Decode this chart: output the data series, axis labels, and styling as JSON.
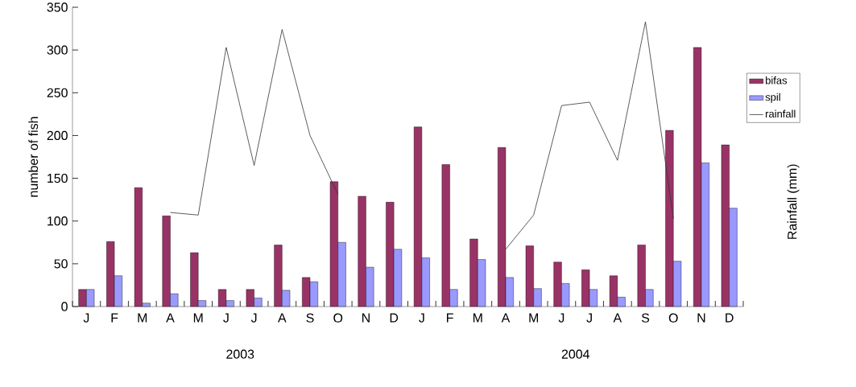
{
  "chart_data": {
    "type": "bar",
    "ylabel": "number of fish",
    "y2label": "Rainfall (mm)",
    "categories": [
      "J",
      "F",
      "M",
      "A",
      "M",
      "J",
      "J",
      "A",
      "S",
      "O",
      "N",
      "D",
      "J",
      "F",
      "M",
      "A",
      "M",
      "J",
      "J",
      "A",
      "S",
      "O",
      "N",
      "D"
    ],
    "series": [
      {
        "name": "bifas",
        "color": "#993366",
        "values": [
          20,
          76,
          139,
          106,
          63,
          20,
          20,
          72,
          34,
          146,
          129,
          122,
          210,
          166,
          79,
          186,
          71,
          52,
          43,
          36,
          72,
          206,
          303,
          189
        ]
      },
      {
        "name": "spil",
        "color": "#9999ff",
        "values": [
          20,
          36,
          4,
          15,
          7,
          7,
          10,
          19,
          29,
          75,
          46,
          67,
          57,
          20,
          55,
          34,
          21,
          27,
          20,
          11,
          20,
          53,
          168,
          115
        ]
      },
      {
        "name": "rainfall",
        "type": "line",
        "color": "#333333",
        "values": [
          null,
          null,
          null,
          110,
          107,
          303,
          165,
          324,
          200,
          131,
          null,
          null,
          null,
          null,
          null,
          67,
          107,
          235,
          239,
          171,
          333,
          103,
          null,
          null
        ]
      }
    ],
    "ylim": [
      0,
      350
    ],
    "yticks": [
      0,
      50,
      100,
      150,
      200,
      250,
      300,
      350
    ],
    "legend": "right",
    "annotations": [
      "2003",
      "2004"
    ]
  }
}
